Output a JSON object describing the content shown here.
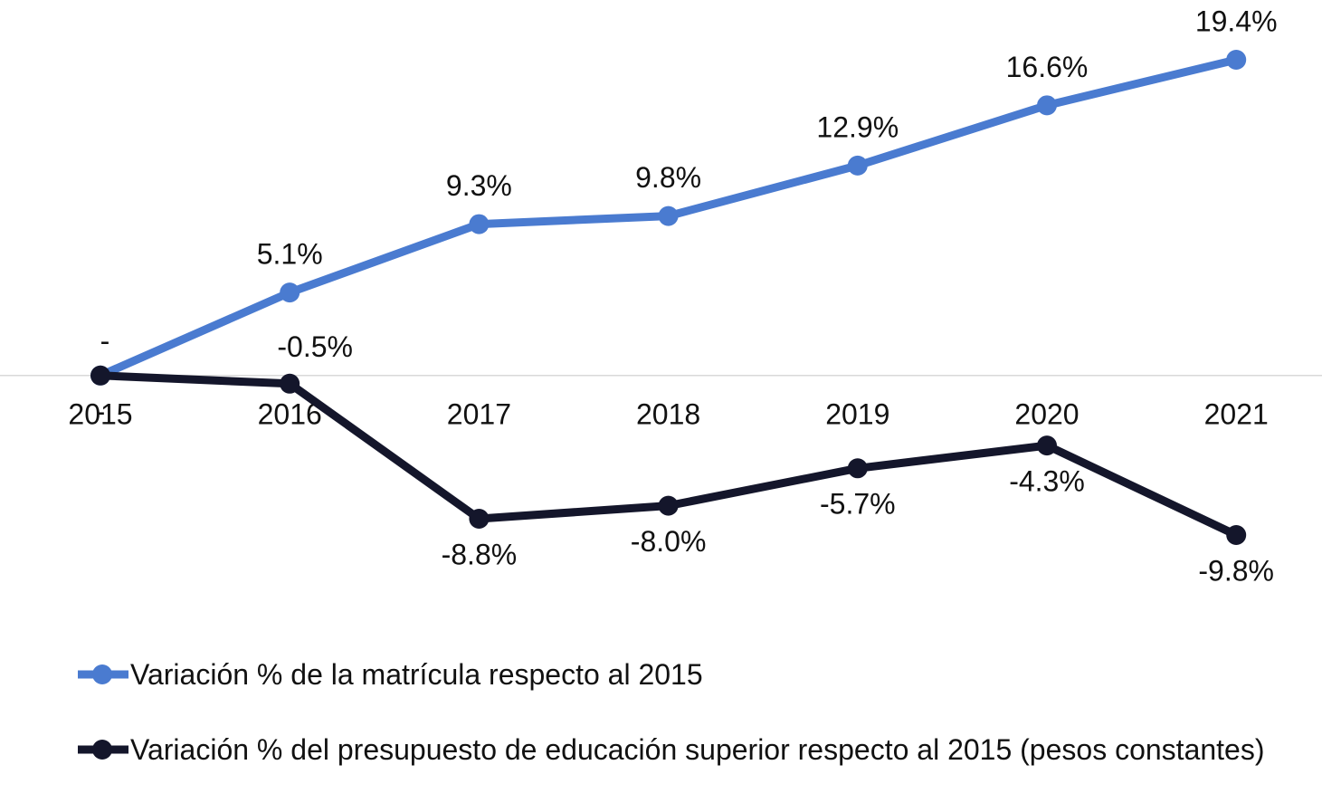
{
  "chart_data": {
    "type": "line",
    "categories": [
      "2015",
      "2016",
      "2017",
      "2018",
      "2019",
      "2020",
      "2021"
    ],
    "series": [
      {
        "name": "Variación % de la matrícula respecto al 2015",
        "color": "#4a7bd0",
        "values": [
          0,
          5.1,
          9.3,
          9.8,
          12.9,
          16.6,
          19.4
        ],
        "value_labels": [
          "-",
          "5.1%",
          "9.3%",
          "9.8%",
          "12.9%",
          "16.6%",
          "19.4%"
        ]
      },
      {
        "name": "Variación % del presupuesto de educación superior respecto al 2015 (pesos constantes)",
        "color": "#14162b",
        "values": [
          0,
          -0.5,
          -8.8,
          -8.0,
          -5.7,
          -4.3,
          -9.8
        ],
        "value_labels": [
          "-",
          "-0.5%",
          "-8.8%",
          "-8.0%",
          "-5.7%",
          "-4.3%",
          "-9.8%"
        ]
      }
    ]
  }
}
